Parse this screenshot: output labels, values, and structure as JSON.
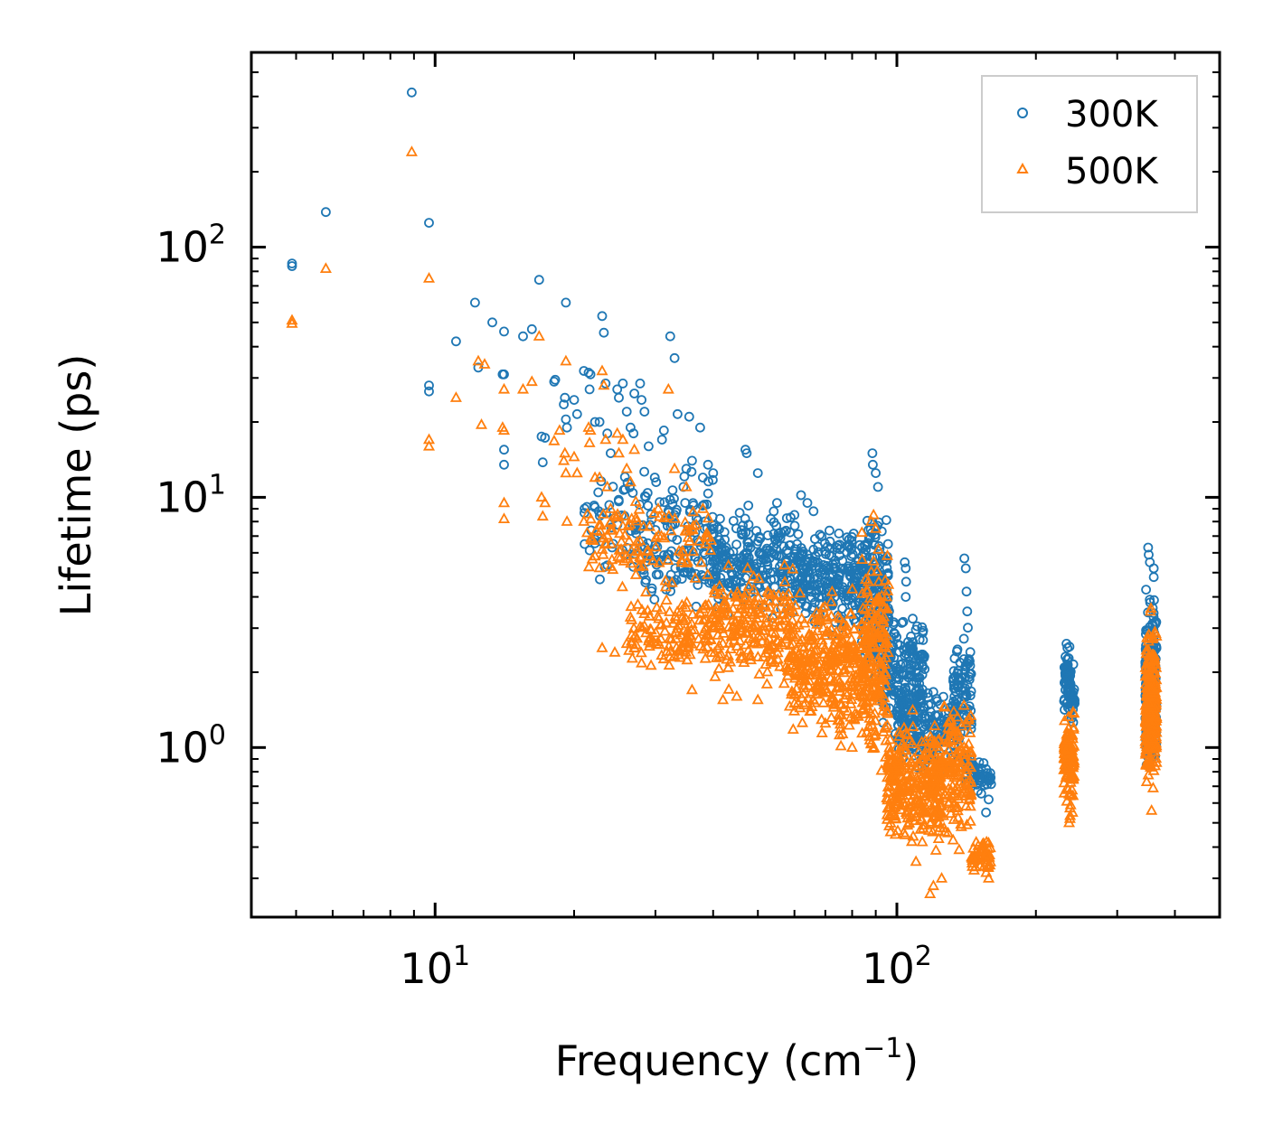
{
  "chart_data": {
    "type": "scatter",
    "xscale": "log",
    "yscale": "log",
    "xlabel": "Frequency (cm",
    "xlabel_sup": "−1",
    "xlabel_close": ")",
    "ylabel": "Lifetime (ps)",
    "xlim": [
      4.0,
      500.0
    ],
    "ylim": [
      0.21,
      600.0
    ],
    "x_ticks": [
      {
        "value": 10,
        "base": "10",
        "exp": "1"
      },
      {
        "value": 100,
        "base": "10",
        "exp": "2"
      }
    ],
    "y_ticks": [
      {
        "value": 1,
        "base": "10",
        "exp": "0"
      },
      {
        "value": 10,
        "base": "10",
        "exp": "1"
      },
      {
        "value": 100,
        "base": "10",
        "exp": "2"
      }
    ],
    "legend": {
      "position": "top-right",
      "entries": [
        {
          "label": "300K",
          "marker": "circle",
          "color": "#1f77b4"
        },
        {
          "label": "500K",
          "marker": "triangle",
          "color": "#ff7f0e"
        }
      ]
    },
    "series": [
      {
        "name": "300K",
        "marker": "circle",
        "color": "#1f77b4",
        "points": [
          [
            4.9,
            86
          ],
          [
            4.9,
            84
          ],
          [
            5.8,
            138
          ],
          [
            8.9,
            415
          ],
          [
            9.7,
            125
          ],
          [
            9.7,
            28
          ],
          [
            9.7,
            26.5
          ],
          [
            11.1,
            42
          ],
          [
            12.2,
            60
          ],
          [
            12.4,
            33
          ],
          [
            13.3,
            50
          ],
          [
            14.0,
            31
          ],
          [
            14.1,
            31
          ],
          [
            14.1,
            46
          ],
          [
            14.1,
            15.5
          ],
          [
            14.1,
            13.5
          ],
          [
            15.5,
            44
          ],
          [
            16.2,
            47
          ],
          [
            16.8,
            74
          ],
          [
            17.0,
            17.5
          ],
          [
            17.1,
            13.8
          ],
          [
            17.3,
            17.3
          ],
          [
            18.1,
            29
          ],
          [
            18.2,
            29.5
          ],
          [
            19.2,
            60
          ],
          [
            19.0,
            23.5
          ],
          [
            19.1,
            25
          ],
          [
            19.2,
            20.5
          ],
          [
            19.3,
            19
          ],
          [
            20.0,
            24.5
          ],
          [
            20.3,
            21.5
          ],
          [
            21.0,
            32
          ],
          [
            21.5,
            31.5
          ],
          [
            21.6,
            27
          ],
          [
            21.7,
            31
          ],
          [
            22.2,
            20
          ],
          [
            22.7,
            20
          ],
          [
            23.0,
            53
          ],
          [
            23.2,
            45.5
          ],
          [
            23.4,
            28.5
          ],
          [
            23.6,
            18
          ],
          [
            24.0,
            15
          ],
          [
            24.8,
            27
          ],
          [
            25.0,
            25
          ],
          [
            25.5,
            28.5
          ],
          [
            26.0,
            22
          ],
          [
            26.5,
            19
          ],
          [
            26.9,
            18
          ],
          [
            27.0,
            26
          ],
          [
            27.8,
            28.5
          ],
          [
            28.0,
            24.5
          ],
          [
            28.4,
            22
          ],
          [
            29.0,
            16
          ],
          [
            29.9,
            12
          ],
          [
            30.1,
            11.5
          ],
          [
            31.0,
            17
          ],
          [
            31.3,
            18.5
          ],
          [
            32.3,
            44
          ],
          [
            33.0,
            36
          ],
          [
            33.5,
            21.5
          ],
          [
            34.5,
            11
          ],
          [
            35.0,
            13
          ],
          [
            35.5,
            21
          ],
          [
            36.0,
            14
          ],
          [
            37.5,
            19
          ],
          [
            38.0,
            12
          ],
          [
            39.0,
            13.5
          ],
          [
            40.0,
            12.5
          ],
          [
            47.0,
            15.5
          ],
          [
            47.3,
            15
          ],
          [
            50.0,
            12.5
          ],
          [
            55.0,
            9.5
          ],
          [
            60.0,
            8.5
          ],
          [
            62.0,
            10.2
          ],
          [
            64.0,
            9.5
          ],
          [
            66.0,
            8.8
          ],
          [
            88.5,
            15
          ],
          [
            88.7,
            13.5
          ],
          [
            90.0,
            12.5
          ],
          [
            91.0,
            11
          ],
          [
            104.0,
            5.5
          ],
          [
            104.5,
            5.2
          ],
          [
            104.7,
            4.6
          ],
          [
            104.5,
            4.0
          ],
          [
            112.0,
            1.9
          ],
          [
            140.0,
            5.7
          ],
          [
            141.0,
            5.2
          ],
          [
            141.5,
            4.2
          ],
          [
            142.0,
            3.5
          ],
          [
            156.0,
            0.55
          ],
          [
            158.0,
            0.62
          ],
          [
            233.0,
            2.6
          ],
          [
            234.0,
            2.5
          ],
          [
            241.0,
            2.15
          ],
          [
            350.0,
            6.3
          ],
          [
            351.0,
            5.9
          ],
          [
            353.0,
            5.5
          ],
          [
            360.0,
            5.2
          ],
          [
            360.0,
            4.8
          ]
        ],
        "clusters": [
          {
            "xlo": 21,
            "xhi": 40,
            "ylo": 4.0,
            "yhi": 16,
            "n": 120
          },
          {
            "xlo": 28,
            "xhi": 45,
            "ylo": 3.5,
            "yhi": 8.0,
            "n": 90
          },
          {
            "xlo": 40,
            "xhi": 60,
            "ylo": 3.0,
            "yhi": 10,
            "n": 220
          },
          {
            "xlo": 60,
            "xhi": 85,
            "ylo": 2.5,
            "yhi": 8.5,
            "n": 260
          },
          {
            "xlo": 84,
            "xhi": 96,
            "ylo": 1.5,
            "yhi": 11,
            "n": 180
          },
          {
            "xlo": 92,
            "xhi": 115,
            "ylo": 1.0,
            "yhi": 4.0,
            "n": 200
          },
          {
            "xlo": 100,
            "xhi": 135,
            "ylo": 0.7,
            "yhi": 2.0,
            "n": 180
          },
          {
            "xlo": 132,
            "xhi": 145,
            "ylo": 0.8,
            "yhi": 3.5,
            "n": 90
          },
          {
            "xlo": 140,
            "xhi": 160,
            "ylo": 0.62,
            "yhi": 1.0,
            "n": 60
          },
          {
            "xlo": 230,
            "xhi": 238,
            "ylo": 1.3,
            "yhi": 2.6,
            "n": 70
          },
          {
            "xlo": 238,
            "xhi": 243,
            "ylo": 1.2,
            "yhi": 1.9,
            "n": 20
          },
          {
            "xlo": 345,
            "xhi": 365,
            "ylo": 0.65,
            "yhi": 5.0,
            "n": 220
          }
        ]
      },
      {
        "name": "500K",
        "marker": "triangle",
        "color": "#ff7f0e",
        "points": [
          [
            4.9,
            51
          ],
          [
            4.9,
            49.5
          ],
          [
            5.8,
            82
          ],
          [
            8.9,
            240
          ],
          [
            9.7,
            75
          ],
          [
            9.7,
            17
          ],
          [
            9.7,
            16
          ],
          [
            11.1,
            25
          ],
          [
            12.4,
            35
          ],
          [
            12.8,
            34
          ],
          [
            12.6,
            19.5
          ],
          [
            14.0,
            19
          ],
          [
            14.1,
            18.5
          ],
          [
            14.1,
            27
          ],
          [
            14.1,
            9.5
          ],
          [
            14.1,
            8.2
          ],
          [
            15.5,
            27
          ],
          [
            16.2,
            29
          ],
          [
            16.8,
            44
          ],
          [
            17.0,
            10
          ],
          [
            17.1,
            8.4
          ],
          [
            17.3,
            9.5
          ],
          [
            18.1,
            16.8
          ],
          [
            18.6,
            18.5
          ],
          [
            19.2,
            35
          ],
          [
            19.0,
            14
          ],
          [
            19.1,
            15
          ],
          [
            19.2,
            12.5
          ],
          [
            19.3,
            8
          ],
          [
            20.0,
            14.5
          ],
          [
            20.3,
            12.5
          ],
          [
            21.0,
            8
          ],
          [
            21.5,
            19
          ],
          [
            21.6,
            16.5
          ],
          [
            21.7,
            18.5
          ],
          [
            22.2,
            12
          ],
          [
            22.7,
            12
          ],
          [
            23.0,
            32
          ],
          [
            23.2,
            28
          ],
          [
            23.4,
            17
          ],
          [
            23.6,
            11
          ],
          [
            24.0,
            9
          ],
          [
            24.8,
            18
          ],
          [
            25.0,
            15
          ],
          [
            25.5,
            17
          ],
          [
            26.0,
            13
          ],
          [
            26.5,
            11.5
          ],
          [
            27.0,
            15.5
          ],
          [
            32.0,
            27
          ],
          [
            33.0,
            13
          ],
          [
            35.0,
            11
          ],
          [
            38.0,
            9
          ],
          [
            23.0,
            2.5
          ],
          [
            24.5,
            2.4
          ],
          [
            26.0,
            2.6
          ],
          [
            27.0,
            2.5
          ],
          [
            36.0,
            1.7
          ],
          [
            42.0,
            1.55
          ],
          [
            45.0,
            1.6
          ],
          [
            50.0,
            1.55
          ],
          [
            57.0,
            1.8
          ],
          [
            60.0,
            1.5
          ],
          [
            70.0,
            1.25
          ],
          [
            80.0,
            1.0
          ],
          [
            88.0,
            8
          ],
          [
            89.0,
            8.5
          ],
          [
            90.0,
            7.5
          ],
          [
            102.0,
            0.85
          ],
          [
            110.0,
            0.35
          ],
          [
            118.0,
            0.26
          ],
          [
            120.0,
            0.28
          ],
          [
            125.0,
            0.3
          ],
          [
            155.0,
            0.38
          ],
          [
            158.0,
            0.3
          ],
          [
            158.0,
            0.34
          ],
          [
            236.0,
            0.5
          ],
          [
            237.0,
            0.52
          ],
          [
            240.0,
            0.55
          ],
          [
            356.0,
            0.56
          ],
          [
            354.0,
            3.5
          ],
          [
            355.0,
            3.6
          ]
        ],
        "clusters": [
          {
            "xlo": 21,
            "xhi": 40,
            "ylo": 4.0,
            "yhi": 11,
            "n": 120
          },
          {
            "xlo": 26,
            "xhi": 38,
            "ylo": 1.7,
            "yhi": 4.5,
            "n": 110
          },
          {
            "xlo": 38,
            "xhi": 60,
            "ylo": 1.6,
            "yhi": 6.0,
            "n": 240
          },
          {
            "xlo": 58,
            "xhi": 85,
            "ylo": 0.9,
            "yhi": 5.0,
            "n": 320
          },
          {
            "xlo": 84,
            "xhi": 96,
            "ylo": 0.6,
            "yhi": 8.5,
            "n": 200
          },
          {
            "xlo": 95,
            "xhi": 125,
            "ylo": 0.33,
            "yhi": 1.5,
            "n": 300
          },
          {
            "xlo": 120,
            "xhi": 145,
            "ylo": 0.35,
            "yhi": 1.8,
            "n": 170
          },
          {
            "xlo": 145,
            "xhi": 160,
            "ylo": 0.3,
            "yhi": 0.45,
            "n": 50
          },
          {
            "xlo": 230,
            "xhi": 242,
            "ylo": 0.52,
            "yhi": 1.5,
            "n": 110
          },
          {
            "xlo": 345,
            "xhi": 365,
            "ylo": 0.6,
            "yhi": 3.6,
            "n": 260
          }
        ]
      }
    ]
  }
}
